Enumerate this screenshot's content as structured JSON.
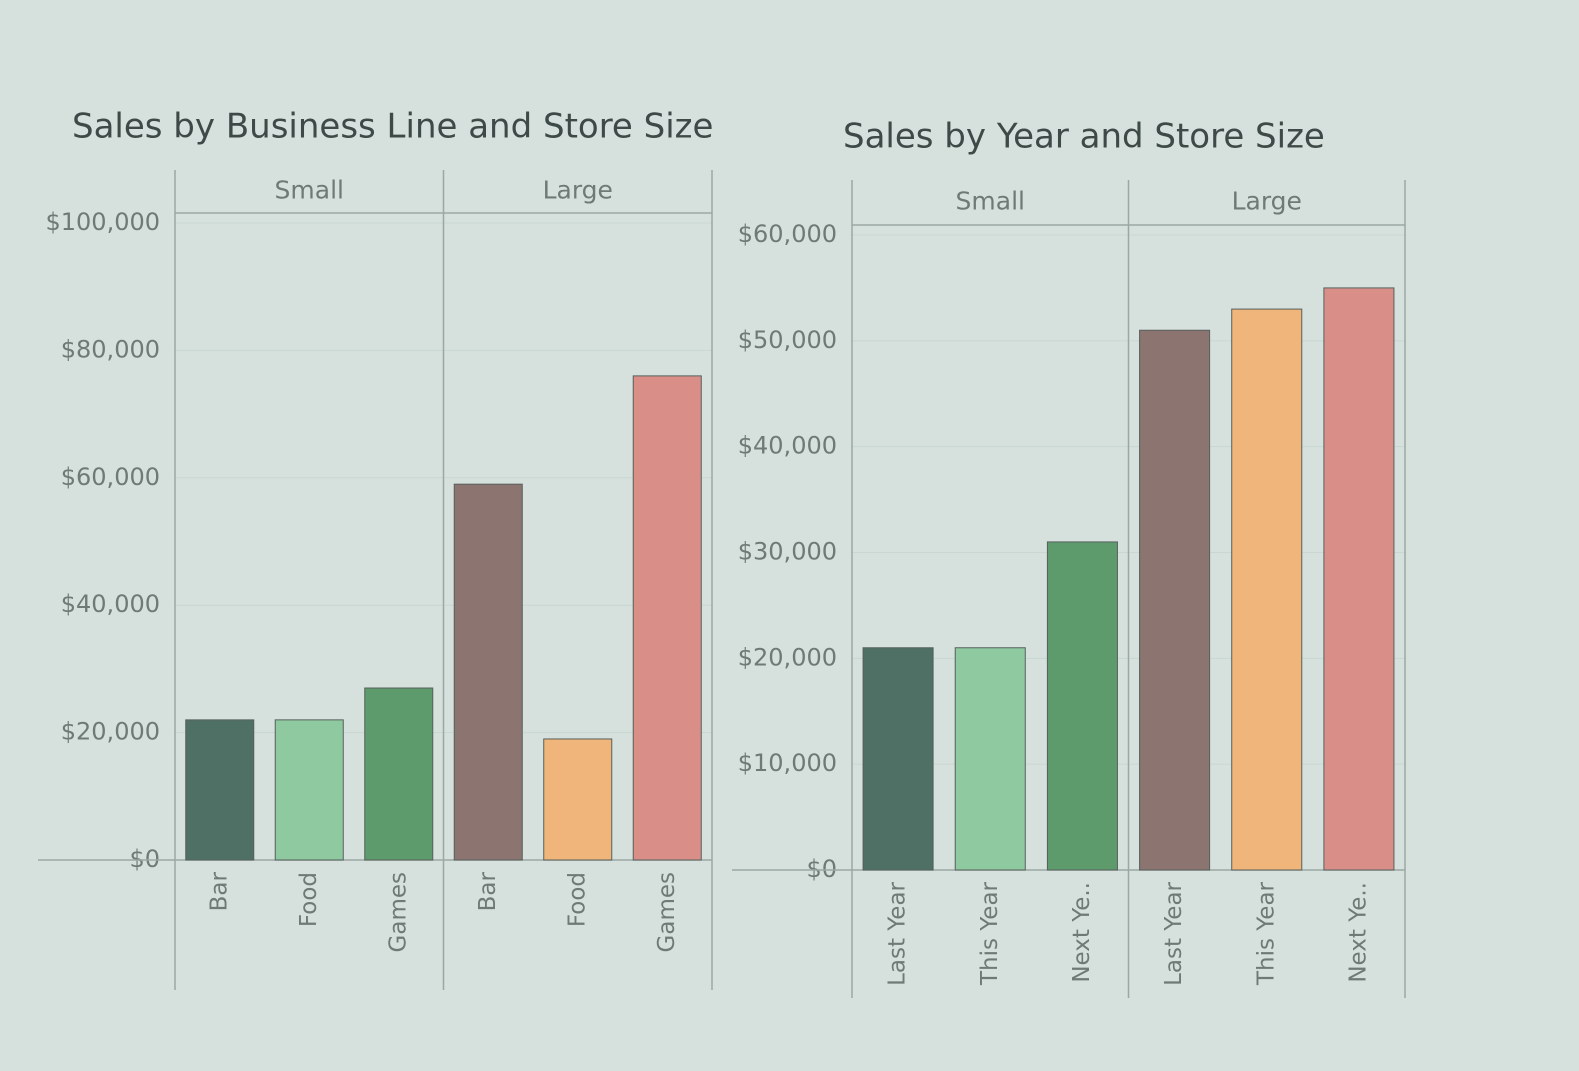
{
  "chart_data": [
    {
      "type": "bar",
      "title": "Sales by Business Line and Store Size",
      "ylim": [
        0,
        100000
      ],
      "yticks": [
        {
          "value": 0,
          "label": "$0"
        },
        {
          "value": 20000,
          "label": "$20,000"
        },
        {
          "value": 40000,
          "label": "$40,000"
        },
        {
          "value": 60000,
          "label": "$60,000"
        },
        {
          "value": 80000,
          "label": "$80,000"
        },
        {
          "value": 100000,
          "label": "$100,000"
        }
      ],
      "grid": true,
      "panes": [
        {
          "name": "Small",
          "categories": [
            "Bar",
            "Food",
            "Games"
          ],
          "values": [
            22000,
            22000,
            27000
          ],
          "colors": [
            "#4f7064",
            "#8fc99f",
            "#5d9a6c"
          ]
        },
        {
          "name": "Large",
          "categories": [
            "Bar",
            "Food",
            "Games"
          ],
          "values": [
            59000,
            19000,
            76000
          ],
          "colors": [
            "#8c7470",
            "#f0b57a",
            "#d98f88"
          ]
        }
      ]
    },
    {
      "type": "bar",
      "title": "Sales by Year and Store Size",
      "ylim": [
        0,
        60000
      ],
      "yticks": [
        {
          "value": 0,
          "label": "$0"
        },
        {
          "value": 10000,
          "label": "$10,000"
        },
        {
          "value": 20000,
          "label": "$20,000"
        },
        {
          "value": 30000,
          "label": "$30,000"
        },
        {
          "value": 40000,
          "label": "$40,000"
        },
        {
          "value": 50000,
          "label": "$50,000"
        },
        {
          "value": 60000,
          "label": "$60,000"
        }
      ],
      "grid": true,
      "panes": [
        {
          "name": "Small",
          "categories": [
            "Last Year",
            "This Year",
            "Next Ye.."
          ],
          "values": [
            21000,
            21000,
            31000
          ],
          "colors": [
            "#4f7064",
            "#8fc99f",
            "#5d9a6c"
          ]
        },
        {
          "name": "Large",
          "categories": [
            "Last Year",
            "This Year",
            "Next Ye.."
          ],
          "values": [
            51000,
            53000,
            55000
          ],
          "colors": [
            "#8c7470",
            "#f0b57a",
            "#d98f88"
          ]
        }
      ]
    }
  ]
}
